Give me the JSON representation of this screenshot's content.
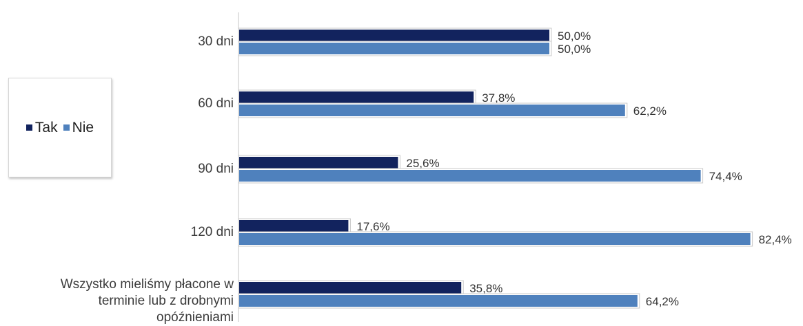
{
  "chart_data": {
    "type": "bar",
    "orientation": "horizontal",
    "categories": [
      "30 dni",
      "60 dni",
      "90 dni",
      "120 dni",
      "Wszystko mieliśmy płacone w\nterminie lub z drobnymi\nopóźnieniami"
    ],
    "series": [
      {
        "name": "Tak",
        "values": [
          50.0,
          37.8,
          25.6,
          17.6,
          35.8
        ],
        "labels": [
          "50,0%",
          "37,8%",
          "25,6%",
          "17,6%",
          "35,8%"
        ],
        "color": "#12235e"
      },
      {
        "name": "Nie",
        "values": [
          50.0,
          62.2,
          74.4,
          82.4,
          64.2
        ],
        "labels": [
          "50,0%",
          "62,2%",
          "74,4%",
          "82,4%",
          "64,2%"
        ],
        "color": "#4f81bd"
      }
    ],
    "xlim": [
      0,
      100
    ],
    "legend_position": "left",
    "grid": false
  }
}
